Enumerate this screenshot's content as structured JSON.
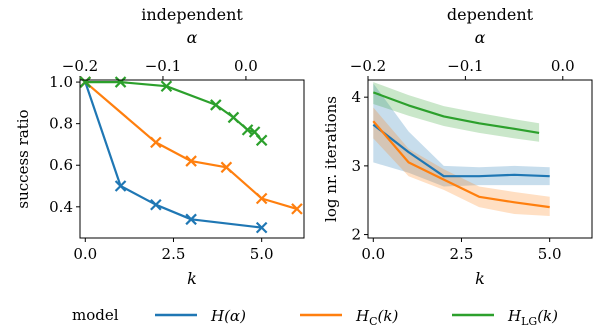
{
  "chart_data": [
    {
      "type": "line",
      "title": "independent",
      "xlabel": "k",
      "x2label": "α",
      "ylabel": "success ratio",
      "xlim": [
        -0.15,
        6.2
      ],
      "ylim": [
        0.25,
        1.01
      ],
      "xticks": [
        0.0,
        2.5,
        5.0
      ],
      "xtick_labels": [
        "0.0",
        "2.5",
        "5.0"
      ],
      "x2ticks": [
        -0.2,
        -0.1,
        0.0
      ],
      "x2tick_labels": [
        "−0.2",
        "−0.1",
        "0.0"
      ],
      "x2lim": [
        -0.2,
        0.07
      ],
      "yticks": [
        0.4,
        0.6,
        0.8,
        1.0
      ],
      "ytick_labels": [
        "0.4",
        "0.6",
        "0.8",
        "1.0"
      ],
      "series": [
        {
          "name": "H(α)",
          "color": "#1f77b4",
          "x": [
            0,
            1,
            2,
            3,
            5
          ],
          "y": [
            1.0,
            0.5,
            0.41,
            0.34,
            0.3
          ]
        },
        {
          "name": "H_C(k)",
          "color": "#ff7f0e",
          "x": [
            0,
            2,
            3,
            4,
            5,
            6
          ],
          "y": [
            1.0,
            0.71,
            0.62,
            0.59,
            0.44,
            0.39
          ]
        },
        {
          "name": "H_LG(k)",
          "color": "#2ca02c",
          "x": [
            0,
            1,
            2.3,
            3.7,
            4.2,
            4.6,
            4.8,
            5.0
          ],
          "y": [
            1.0,
            1.0,
            0.98,
            0.89,
            0.83,
            0.77,
            0.76,
            0.72
          ]
        }
      ]
    },
    {
      "type": "line",
      "title": "dependent",
      "xlabel": "k",
      "x2label": "α",
      "ylabel": "log nr. iterations",
      "xlim": [
        -0.15,
        6.2
      ],
      "ylim": [
        1.95,
        4.25
      ],
      "xticks": [
        0.0,
        2.5,
        5.0
      ],
      "xtick_labels": [
        "0.0",
        "2.5",
        "5.0"
      ],
      "x2ticks": [
        -0.2,
        -0.1,
        0.0
      ],
      "x2tick_labels": [
        "−0.2",
        "−0.1",
        "0.0"
      ],
      "x2lim": [
        -0.2,
        0.03
      ],
      "yticks": [
        2,
        3,
        4
      ],
      "ytick_labels": [
        "2",
        "3",
        "4"
      ],
      "series": [
        {
          "name": "H(α)",
          "color": "#1f77b4",
          "x": [
            0,
            1,
            2,
            3,
            4,
            5
          ],
          "y": [
            3.6,
            3.2,
            2.85,
            2.85,
            2.87,
            2.85
          ],
          "lower": [
            3.05,
            2.9,
            2.7,
            2.72,
            2.72,
            2.72
          ],
          "upper": [
            4.2,
            3.5,
            3.0,
            2.98,
            3.0,
            2.98
          ]
        },
        {
          "name": "H_C(k)",
          "color": "#ff7f0e",
          "x": [
            0,
            1,
            2,
            3,
            4,
            5
          ],
          "y": [
            3.65,
            3.05,
            2.8,
            2.55,
            2.47,
            2.4
          ],
          "lower": [
            3.4,
            2.85,
            2.65,
            2.4,
            2.3,
            2.27
          ],
          "upper": [
            3.85,
            3.25,
            2.95,
            2.7,
            2.62,
            2.55
          ]
        },
        {
          "name": "H_LG(k)",
          "color": "#2ca02c",
          "x": [
            0,
            1,
            2,
            3,
            4,
            4.7
          ],
          "y": [
            4.07,
            3.88,
            3.72,
            3.62,
            3.54,
            3.48
          ],
          "lower": [
            3.9,
            3.73,
            3.58,
            3.48,
            3.4,
            3.35
          ],
          "upper": [
            4.22,
            4.03,
            3.87,
            3.77,
            3.68,
            3.62
          ]
        }
      ]
    }
  ],
  "legend": {
    "title": "model",
    "entries": [
      {
        "label": "H(α)",
        "color": "#1f77b4"
      },
      {
        "label": "H_C(k)",
        "color": "#ff7f0e"
      },
      {
        "label": "H_LG(k)",
        "color": "#2ca02c"
      }
    ]
  }
}
